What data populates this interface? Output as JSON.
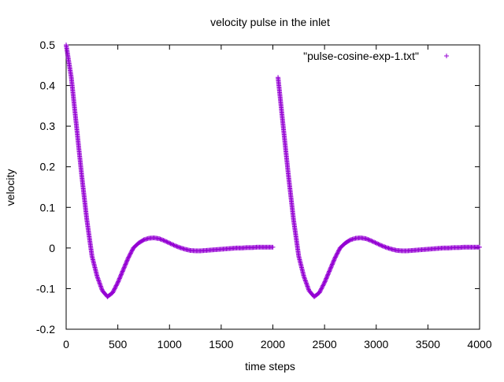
{
  "chart_data": {
    "type": "scatter",
    "title": "velocity pulse in the inlet",
    "xlabel": "time steps",
    "ylabel": "velocity",
    "xlim": [
      0,
      4000
    ],
    "ylim": [
      -0.2,
      0.5
    ],
    "xticks": [
      0,
      500,
      1000,
      1500,
      2000,
      2500,
      3000,
      3500,
      4000
    ],
    "yticks": [
      -0.2,
      -0.1,
      0,
      0.1,
      0.2,
      0.3,
      0.4,
      0.5
    ],
    "xtick_labels": [
      "0",
      "500",
      "1000",
      "1500",
      "2000",
      "2500",
      "3000",
      "3500",
      "4000"
    ],
    "ytick_labels": [
      "-0.2",
      "-0.1",
      "0",
      "0.1",
      "0.2",
      "0.3",
      "0.4",
      "0.5"
    ],
    "grid": false,
    "legend_position": "top-right",
    "series": [
      {
        "name": "\"pulse-cosine-exp-1.txt\"",
        "color": "#9400d3",
        "marker": "plus",
        "x": [
          0,
          50,
          100,
          150,
          200,
          250,
          300,
          350,
          400,
          450,
          500,
          550,
          600,
          650,
          700,
          750,
          800,
          850,
          900,
          950,
          1000,
          1050,
          1100,
          1150,
          1200,
          1250,
          1300,
          1350,
          1400,
          1450,
          1500,
          1550,
          1600,
          1650,
          1700,
          1750,
          1800,
          1850,
          1900,
          1950,
          2000,
          2050,
          2100,
          2150,
          2200,
          2250,
          2300,
          2350,
          2400,
          2450,
          2500,
          2550,
          2600,
          2650,
          2700,
          2750,
          2800,
          2850,
          2900,
          2950,
          3000,
          3050,
          3100,
          3150,
          3200,
          3250,
          3300,
          3350,
          3400,
          3450,
          3500,
          3550,
          3600,
          3650,
          3700,
          3750,
          3800,
          3850,
          3900,
          3950,
          4000
        ],
        "y": [
          0.5,
          0.42,
          0.3,
          0.18,
          0.07,
          -0.02,
          -0.07,
          -0.105,
          -0.12,
          -0.11,
          -0.085,
          -0.055,
          -0.025,
          0.0,
          0.012,
          0.02,
          0.024,
          0.025,
          0.023,
          0.018,
          0.012,
          0.006,
          0.001,
          -0.003,
          -0.006,
          -0.007,
          -0.007,
          -0.006,
          -0.005,
          -0.004,
          -0.003,
          -0.002,
          -0.001,
          0.0,
          0.0,
          0.001,
          0.001,
          0.002,
          0.002,
          0.002,
          0.002,
          0.42,
          0.3,
          0.18,
          0.07,
          -0.02,
          -0.07,
          -0.105,
          -0.12,
          -0.11,
          -0.085,
          -0.055,
          -0.025,
          0.0,
          0.012,
          0.02,
          0.024,
          0.025,
          0.023,
          0.018,
          0.012,
          0.006,
          0.001,
          -0.003,
          -0.006,
          -0.007,
          -0.007,
          -0.006,
          -0.005,
          -0.004,
          -0.003,
          -0.002,
          -0.001,
          0.0,
          0.0,
          0.001,
          0.001,
          0.002,
          0.002,
          0.002,
          0.002
        ]
      }
    ]
  }
}
